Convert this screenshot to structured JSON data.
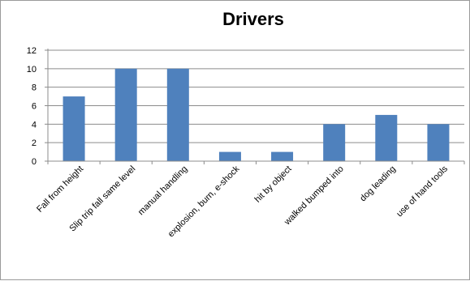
{
  "chart_data": {
    "type": "bar",
    "title": "Drivers",
    "xlabel": "",
    "ylabel": "",
    "categories": [
      "Fall from height",
      "Slip trip fall same level",
      "manual handling",
      "explosion, burn, e-shock",
      "hit by object",
      "walked bumped into",
      "dog leading",
      "use of hand tools"
    ],
    "values": [
      7,
      10,
      10,
      1,
      1,
      4,
      5,
      4
    ],
    "ylim": [
      0,
      12
    ],
    "yticks": [
      "0",
      "2",
      "4",
      "6",
      "8",
      "10",
      "12"
    ],
    "grid": true,
    "legend": "none",
    "bar_color": "#4f81bd",
    "grid_color": "#8c8c8c"
  }
}
